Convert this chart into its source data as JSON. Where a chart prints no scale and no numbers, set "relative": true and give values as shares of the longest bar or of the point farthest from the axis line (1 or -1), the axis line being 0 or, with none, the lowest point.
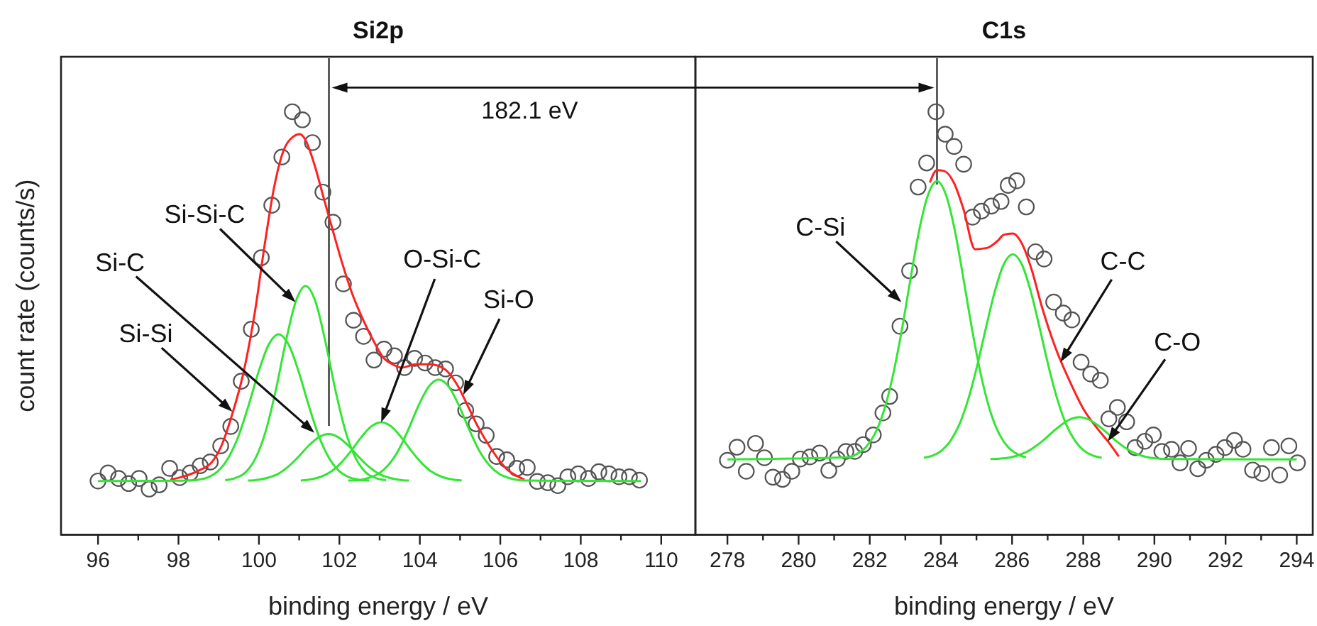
{
  "chart_data": [
    {
      "type": "line",
      "title": "Si2p",
      "xlabel": "binding energy / eV",
      "ylabel": "count rate (counts/s)",
      "relative": true,
      "xlim": [
        95.08,
        110.85
      ],
      "xticks": [
        96,
        {
          "value": 97,
          "label": null
        },
        98,
        {
          "value": 99,
          "label": null
        },
        100,
        {
          "value": 101,
          "label": null
        },
        102,
        {
          "value": 103,
          "label": null
        },
        104,
        {
          "value": 105,
          "label": null
        },
        106,
        {
          "value": 107,
          "label": null
        },
        108,
        {
          "value": 109,
          "label": null
        },
        110
      ],
      "ref_lines": [
        {
          "axis": "x",
          "value": 101.74
        }
      ],
      "annotations": [
        "182.1 eV",
        {
          "text": "Si-Si-C",
          "x": 100.91,
          "y": 0.55
        },
        {
          "text": "Si-C",
          "x": 101.38,
          "y": 0.241
        },
        {
          "text": "Si-Si",
          "x": 99.34,
          "y": 0.291
        },
        {
          "text": "O-Si-C",
          "x": 103.04,
          "y": 0.266
        },
        {
          "text": "Si-O",
          "x": 105.08,
          "y": 0.331
        }
      ],
      "series": [
        {
          "type": "scatter",
          "marker": "circle",
          "color": "#555555",
          "x": [
            96.0,
            96.25,
            96.51,
            96.76,
            97.02,
            97.27,
            97.52,
            97.78,
            98.03,
            98.29,
            98.54,
            98.79,
            99.05,
            99.3,
            99.56,
            99.81,
            100.06,
            100.32,
            100.57,
            100.83,
            101.08,
            101.33,
            101.59,
            101.84,
            102.1,
            102.35,
            102.6,
            102.86,
            103.11,
            103.37,
            103.62,
            103.87,
            104.13,
            104.38,
            104.64,
            104.89,
            105.14,
            105.4,
            105.65,
            105.91,
            106.16,
            106.41,
            106.67,
            106.92,
            107.18,
            107.43,
            107.68,
            107.94,
            108.19,
            108.45,
            108.7,
            108.95,
            109.21,
            109.46
          ],
          "values": [
            0.127,
            0.146,
            0.133,
            0.121,
            0.133,
            0.108,
            0.118,
            0.157,
            0.135,
            0.146,
            0.163,
            0.172,
            0.21,
            0.256,
            0.363,
            0.486,
            0.655,
            0.779,
            0.893,
            1.0,
            0.981,
            0.927,
            0.81,
            0.739,
            0.593,
            0.507,
            0.469,
            0.413,
            0.439,
            0.423,
            0.395,
            0.417,
            0.406,
            0.395,
            0.392,
            0.359,
            0.294,
            0.262,
            0.235,
            0.185,
            0.177,
            0.157,
            0.159,
            0.126,
            0.123,
            0.116,
            0.137,
            0.144,
            0.133,
            0.149,
            0.144,
            0.137,
            0.137,
            0.129
          ]
        },
        {
          "color": "#ff2020",
          "x": [
            97.8,
            98.2,
            98.49,
            98.85,
            99.08,
            99.32,
            99.61,
            99.9,
            100.14,
            100.37,
            100.61,
            100.85,
            101.02,
            101.14,
            101.38,
            101.61,
            101.84,
            102.08,
            102.31,
            102.61,
            102.9,
            103.08,
            103.32,
            103.55,
            103.9,
            104.25,
            104.61,
            104.9,
            105.2,
            105.43,
            105.78,
            106.14,
            106.49,
            106.6
          ],
          "values": [
            0.13,
            0.14,
            0.151,
            0.174,
            0.213,
            0.28,
            0.381,
            0.527,
            0.684,
            0.818,
            0.908,
            0.941,
            0.947,
            0.936,
            0.875,
            0.796,
            0.718,
            0.639,
            0.572,
            0.504,
            0.449,
            0.42,
            0.403,
            0.395,
            0.403,
            0.403,
            0.392,
            0.359,
            0.303,
            0.258,
            0.202,
            0.157,
            0.135,
            0.13
          ]
        },
        {
          "color": "#33e633",
          "x": [
            96,
            98.24,
            98.49,
            98.74,
            98.99,
            99.24,
            99.49,
            99.74,
            99.99,
            100.24,
            100.49,
            100.74,
            100.99,
            101.24,
            101.49,
            101.74,
            101.99,
            102.24,
            102.49,
            102.74
          ],
          "values": [
            0.127,
            0.128,
            0.13,
            0.136,
            0.151,
            0.182,
            0.233,
            0.305,
            0.385,
            0.449,
            0.474,
            0.449,
            0.385,
            0.305,
            0.233,
            0.182,
            0.151,
            0.136,
            0.13,
            0.128
          ]
        },
        {
          "color": "#33e633",
          "x": [
            99.16,
            99.41,
            99.66,
            99.91,
            100.16,
            100.41,
            100.66,
            100.91,
            101.16,
            101.41,
            101.66,
            101.91,
            102.16,
            102.41,
            102.66,
            102.91,
            103.16
          ],
          "values": [
            0.129,
            0.134,
            0.147,
            0.18,
            0.242,
            0.338,
            0.453,
            0.55,
            0.588,
            0.55,
            0.453,
            0.338,
            0.242,
            0.18,
            0.147,
            0.134,
            0.129
          ]
        },
        {
          "color": "#33e633",
          "x": [
            99.73,
            99.98,
            100.23,
            100.48,
            100.73,
            100.98,
            101.23,
            101.48,
            101.73,
            101.98,
            102.23,
            102.48,
            102.73,
            102.98,
            103.23,
            103.48,
            103.73
          ],
          "values": [
            0.128,
            0.13,
            0.135,
            0.144,
            0.161,
            0.184,
            0.21,
            0.23,
            0.238,
            0.23,
            0.21,
            0.184,
            0.161,
            0.144,
            0.135,
            0.13,
            0.128
          ]
        },
        {
          "color": "#33e633",
          "x": [
            101.04,
            101.29,
            101.54,
            101.79,
            102.04,
            102.29,
            102.54,
            102.79,
            103.04,
            103.29,
            103.54,
            103.79,
            104.04,
            104.29,
            104.54,
            104.79,
            105.04
          ],
          "values": [
            0.128,
            0.131,
            0.137,
            0.149,
            0.17,
            0.198,
            0.23,
            0.256,
            0.266,
            0.256,
            0.23,
            0.198,
            0.17,
            0.149,
            0.137,
            0.131,
            0.128
          ]
        },
        {
          "color": "#33e633",
          "x": [
            102.22,
            102.47,
            102.72,
            102.97,
            103.22,
            103.47,
            103.72,
            103.97,
            104.22,
            104.47,
            104.72,
            104.97,
            105.22,
            105.47,
            105.72,
            105.97,
            106.22,
            106.47,
            106.72,
            109.5
          ],
          "values": [
            0.128,
            0.129,
            0.134,
            0.144,
            0.165,
            0.2,
            0.25,
            0.306,
            0.35,
            0.367,
            0.35,
            0.306,
            0.25,
            0.2,
            0.165,
            0.144,
            0.134,
            0.129,
            0.128,
            0.127
          ]
        }
      ]
    },
    {
      "type": "line",
      "title": "C1s",
      "xlabel": "binding energy / eV",
      "relative": true,
      "xlim": [
        277.1,
        294.45
      ],
      "xticks": [
        278,
        {
          "value": 279,
          "label": null
        },
        280,
        {
          "value": 281,
          "label": null
        },
        282,
        {
          "value": 283,
          "label": null
        },
        284,
        {
          "value": 285,
          "label": null
        },
        286,
        {
          "value": 287,
          "label": null
        },
        288,
        {
          "value": 289,
          "label": null
        },
        290,
        {
          "value": 291,
          "label": null
        },
        292,
        {
          "value": 293,
          "label": null
        },
        294
      ],
      "ref_lines": [
        {
          "axis": "x",
          "value": 283.89
        }
      ],
      "annotations": [
        {
          "text": "C-Si",
          "x": 282.89,
          "y": 0.55
        },
        {
          "text": "C-C",
          "x": 287.36,
          "y": 0.408
        },
        {
          "text": "C-O",
          "x": 288.69,
          "y": 0.221
        }
      ],
      "series": [
        {
          "type": "scatter",
          "marker": "circle",
          "color": "#555555",
          "x": [
            278.0,
            278.27,
            278.53,
            278.79,
            279.04,
            279.28,
            279.55,
            279.81,
            280.05,
            280.32,
            280.59,
            280.85,
            281.09,
            281.33,
            281.58,
            281.82,
            282.1,
            282.37,
            282.56,
            282.85,
            283.12,
            283.36,
            283.6,
            283.86,
            284.12,
            284.37,
            284.64,
            284.89,
            285.14,
            285.42,
            285.69,
            285.89,
            286.13,
            286.4,
            286.66,
            286.9,
            287.17,
            287.44,
            287.68,
            287.94,
            288.21,
            288.48,
            288.72,
            288.96,
            289.22,
            289.46,
            289.73,
            289.97,
            290.21,
            290.48,
            290.72,
            290.96,
            291.22,
            291.46,
            291.73,
            291.98,
            292.25,
            292.49,
            292.76,
            293.02,
            293.29,
            293.52,
            293.78,
            294.02
          ],
          "values": [
            0.176,
            0.207,
            0.15,
            0.216,
            0.182,
            0.136,
            0.131,
            0.15,
            0.179,
            0.184,
            0.193,
            0.152,
            0.179,
            0.197,
            0.197,
            0.213,
            0.236,
            0.288,
            0.327,
            0.493,
            0.624,
            0.822,
            0.879,
            1.0,
            0.947,
            0.918,
            0.876,
            0.751,
            0.765,
            0.777,
            0.788,
            0.826,
            0.837,
            0.775,
            0.669,
            0.652,
            0.55,
            0.524,
            0.508,
            0.408,
            0.38,
            0.365,
            0.274,
            0.301,
            0.267,
            0.206,
            0.221,
            0.236,
            0.197,
            0.202,
            0.17,
            0.204,
            0.156,
            0.176,
            0.19,
            0.206,
            0.223,
            0.202,
            0.153,
            0.145,
            0.206,
            0.141,
            0.21,
            0.17
          ]
        },
        {
          "color": "#ff2020",
          "x": [
            283.69,
            283.89,
            284.09,
            284.36,
            284.63,
            284.96,
            285.29,
            285.62,
            285.76,
            286.02,
            286.29,
            286.56,
            286.82,
            287.22,
            287.62,
            288.02,
            288.36,
            288.69,
            289.0
          ],
          "values": [
            0.833,
            0.862,
            0.86,
            0.833,
            0.771,
            0.675,
            0.678,
            0.697,
            0.709,
            0.712,
            0.686,
            0.624,
            0.544,
            0.442,
            0.363,
            0.295,
            0.255,
            0.221,
            0.185
          ]
        },
        {
          "color": "#33e633",
          "x": [
            278,
            281.39,
            281.64,
            281.89,
            282.14,
            282.39,
            282.64,
            282.89,
            283.14,
            283.39,
            283.64,
            283.89,
            284.14,
            284.39,
            284.64,
            284.89,
            285.14,
            285.39,
            285.64,
            285.89,
            286.14,
            286.39
          ],
          "values": [
            0.178,
            0.183,
            0.191,
            0.207,
            0.238,
            0.291,
            0.372,
            0.479,
            0.602,
            0.72,
            0.804,
            0.836,
            0.804,
            0.72,
            0.602,
            0.479,
            0.372,
            0.291,
            0.238,
            0.207,
            0.191,
            0.183
          ]
        },
        {
          "color": "#33e633",
          "x": [
            283.52,
            283.77,
            284.02,
            284.27,
            284.52,
            284.77,
            285.02,
            285.27,
            285.52,
            285.77,
            286.02,
            286.27,
            286.52,
            286.77,
            287.02,
            287.27,
            287.52,
            287.77,
            288.02,
            288.27,
            288.52
          ],
          "values": [
            0.182,
            0.187,
            0.199,
            0.222,
            0.261,
            0.321,
            0.4,
            0.491,
            0.577,
            0.64,
            0.663,
            0.64,
            0.577,
            0.491,
            0.4,
            0.321,
            0.261,
            0.222,
            0.199,
            0.187,
            0.182
          ]
        },
        {
          "color": "#33e633",
          "x": [
            285.39,
            285.64,
            285.89,
            286.14,
            286.39,
            286.64,
            286.89,
            287.14,
            287.39,
            287.64,
            287.89,
            288.14,
            288.39,
            288.64,
            288.89,
            289.14,
            289.39,
            289.64,
            289.89,
            290.14,
            290.39,
            294
          ],
          "values": [
            0.179,
            0.18,
            0.182,
            0.187,
            0.195,
            0.208,
            0.224,
            0.243,
            0.26,
            0.273,
            0.278,
            0.273,
            0.26,
            0.243,
            0.224,
            0.208,
            0.195,
            0.187,
            0.182,
            0.18,
            0.179,
            0.178
          ]
        }
      ]
    }
  ]
}
